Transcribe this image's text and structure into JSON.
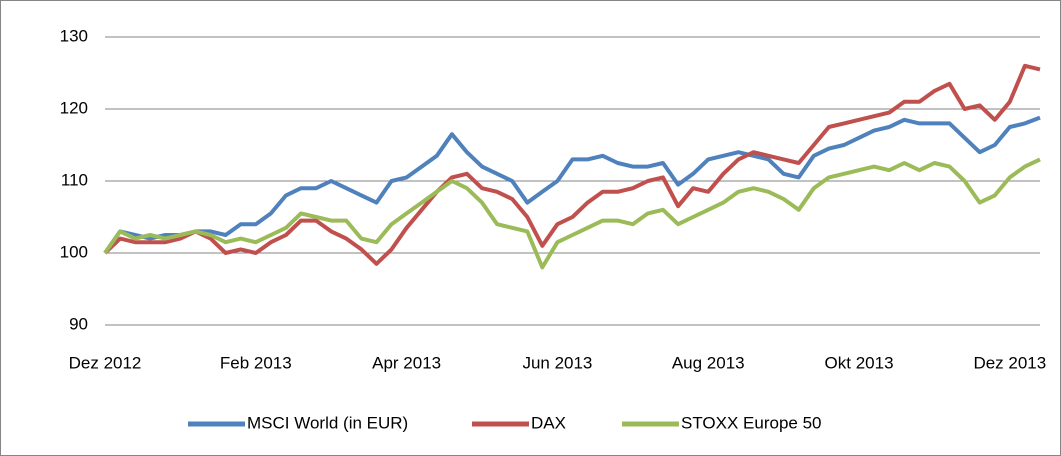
{
  "chart_data": {
    "type": "line",
    "categories": [
      "Dez 2012",
      null,
      null,
      null,
      null,
      null,
      null,
      null,
      null,
      null,
      "Feb 2013",
      null,
      null,
      null,
      null,
      null,
      null,
      null,
      null,
      null,
      "Apr 2013",
      null,
      null,
      null,
      null,
      null,
      null,
      null,
      null,
      null,
      "Jun 2013",
      null,
      null,
      null,
      null,
      null,
      null,
      null,
      null,
      null,
      "Aug 2013",
      null,
      null,
      null,
      null,
      null,
      null,
      null,
      null,
      null,
      "Okt 2013",
      null,
      null,
      null,
      null,
      null,
      null,
      null,
      null,
      null,
      "Dez 2013",
      null,
      null
    ],
    "series": [
      {
        "name": "MSCI World (in EUR)",
        "color": "#4f81bd",
        "values": [
          100,
          103,
          102.5,
          102,
          102.5,
          102.5,
          103,
          103,
          102.5,
          104,
          104,
          105.5,
          108,
          109,
          109,
          110,
          109,
          108,
          107,
          110,
          110.5,
          112,
          113.5,
          116.5,
          114,
          112,
          111,
          110,
          107,
          108.5,
          110,
          113,
          113,
          113.5,
          112.5,
          112,
          112,
          112.5,
          109.5,
          111,
          113,
          113.5,
          114,
          113.5,
          113,
          111,
          110.5,
          113.5,
          114.5,
          115,
          116,
          117,
          117.5,
          118.5,
          118,
          118,
          118,
          116,
          114,
          115,
          117.5,
          118,
          118.8
        ]
      },
      {
        "name": "DAX",
        "color": "#c0504d",
        "values": [
          100,
          102,
          101.5,
          101.5,
          101.5,
          102,
          103,
          102,
          100,
          100.5,
          100,
          101.5,
          102.5,
          104.5,
          104.5,
          103,
          102,
          100.5,
          98.5,
          100.5,
          103.5,
          106,
          108.5,
          110.5,
          111,
          109,
          108.5,
          107.5,
          105,
          101,
          104,
          105,
          107,
          108.5,
          108.5,
          109,
          110,
          110.5,
          106.5,
          109,
          108.5,
          111,
          113,
          114,
          113.5,
          113,
          112.5,
          115,
          117.5,
          118,
          118.5,
          119,
          119.5,
          121,
          121,
          122.5,
          123.5,
          120,
          120.5,
          118.5,
          121,
          126,
          125.5
        ]
      },
      {
        "name": "STOXX Europe 50",
        "color": "#9bbb59",
        "values": [
          100,
          103,
          102,
          102.5,
          102,
          102.5,
          103,
          102.5,
          101.5,
          102,
          101.5,
          102.5,
          103.5,
          105.5,
          105,
          104.5,
          104.5,
          102,
          101.5,
          104,
          105.5,
          107,
          108.5,
          110,
          109,
          107,
          104,
          103.5,
          103,
          98,
          101.5,
          102.5,
          103.5,
          104.5,
          104.5,
          104,
          105.5,
          106,
          104,
          105,
          106,
          107,
          108.5,
          109,
          108.5,
          107.5,
          106,
          109,
          110.5,
          111,
          111.5,
          112,
          111.5,
          112.5,
          111.5,
          112.5,
          112,
          110,
          107,
          108,
          110.5,
          112,
          113
        ]
      }
    ],
    "ylim": [
      90,
      130
    ],
    "yticks": [
      90,
      100,
      110,
      120,
      130
    ],
    "grid": true
  }
}
